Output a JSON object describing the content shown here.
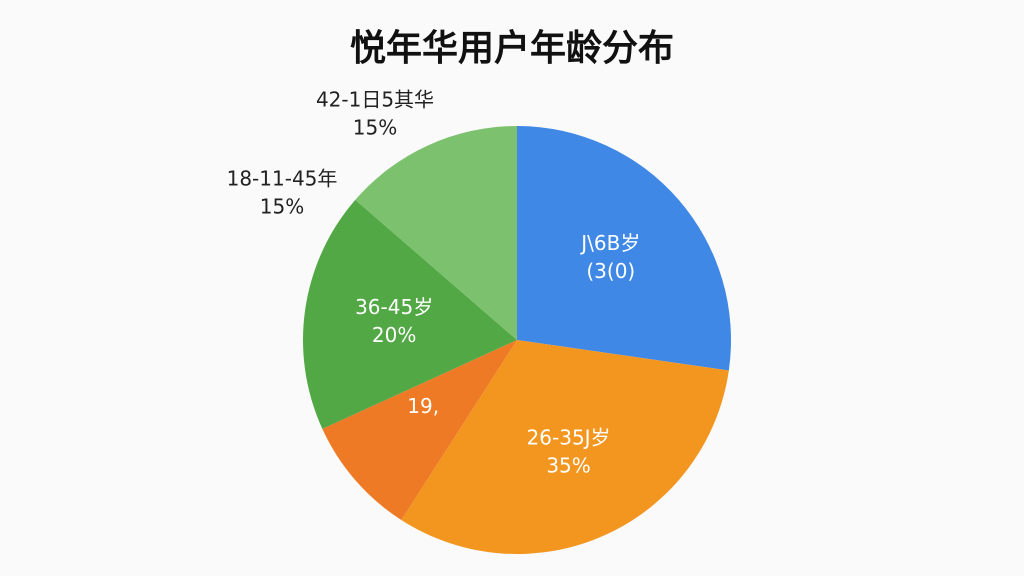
{
  "chart_data": {
    "type": "pie",
    "title": "悦年华用户年龄分布",
    "categories": [
      "J\\6B岁",
      "26-35J岁",
      "19,",
      "36-45岁",
      "42-1日5其华"
    ],
    "values": [
      30,
      35,
      10,
      20,
      15
    ],
    "value_labels": [
      "(3(0)",
      "35%",
      null,
      "20%",
      "15%"
    ],
    "colors": [
      "#3f88e6",
      "#f3961f",
      "#ee7a26",
      "#52a844",
      "#7cc26e"
    ],
    "annotations": [
      "18-11-45年",
      "15%"
    ]
  }
}
